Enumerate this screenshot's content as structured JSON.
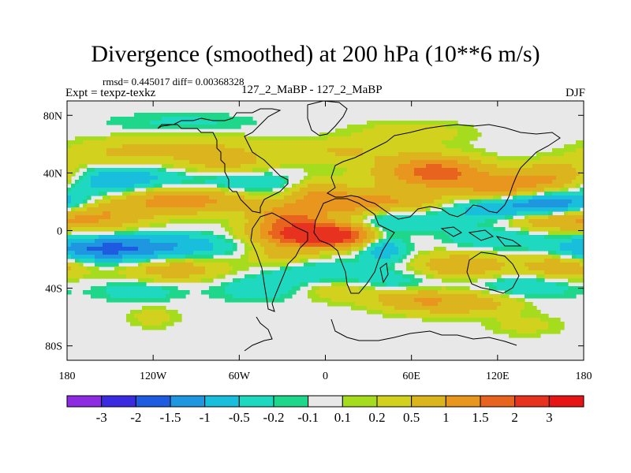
{
  "chart_data": {
    "type": "heatmap",
    "title": "Divergence (smoothed) at 200 hPa (10**6 m/s)",
    "stats": "rmsd= 0.445017 diff= 0.00368328",
    "expt_label": "Expt = texpz-texkz",
    "case_label": "127_2_MaBP - 127_2_MaBP",
    "season": "DJF",
    "x_axis": {
      "range": [
        -180,
        180
      ],
      "ticks": [
        -180,
        -120,
        -60,
        0,
        60,
        120,
        180
      ],
      "tick_labels": [
        "180",
        "120W",
        "60W",
        "0",
        "60E",
        "120E",
        "180"
      ]
    },
    "y_axis": {
      "range": [
        -90,
        90
      ],
      "ticks": [
        80,
        40,
        0,
        -40,
        -80
      ],
      "tick_labels": [
        "80N",
        "40N",
        "0",
        "40S",
        "80S"
      ]
    },
    "colorbar": {
      "labels": [
        "-3",
        "-2",
        "-1.5",
        "-1",
        "-0.5",
        "-0.2",
        "-0.1",
        "0.1",
        "0.2",
        "0.5",
        "1",
        "1.5",
        "2",
        "3"
      ],
      "colors": [
        "#8C2BE2",
        "#3B2BE0",
        "#1E5BE0",
        "#1E96E0",
        "#18BEDC",
        "#1ED9C0",
        "#1ED78A",
        "#E8E8E8",
        "#A6DC1E",
        "#D2D21E",
        "#DCB41E",
        "#E8961E",
        "#E8641E",
        "#E6321E",
        "#E61414"
      ]
    },
    "features": [
      {
        "lon": 0,
        "lat": -3,
        "value": 3.0,
        "sx": 30,
        "sy": 6
      },
      {
        "lon": -25,
        "lat": 10,
        "value": 1.3,
        "sx": 18,
        "sy": 7
      },
      {
        "lon": -5,
        "lat": 25,
        "value": 1.0,
        "sx": 14,
        "sy": 8
      },
      {
        "lon": 20,
        "lat": 18,
        "value": 1.0,
        "sx": 16,
        "sy": 7
      },
      {
        "lon": 55,
        "lat": 20,
        "value": 0.9,
        "sx": 22,
        "sy": 6
      },
      {
        "lon": -100,
        "lat": 22,
        "value": 1.4,
        "sx": 34,
        "sy": 7
      },
      {
        "lon": -160,
        "lat": 10,
        "value": 1.0,
        "sx": 25,
        "sy": 7
      },
      {
        "lon": 155,
        "lat": 8,
        "value": 1.0,
        "sx": 24,
        "sy": 6
      },
      {
        "lon": 125,
        "lat": 30,
        "value": 1.3,
        "sx": 25,
        "sy": 8
      },
      {
        "lon": 165,
        "lat": 38,
        "value": 0.9,
        "sx": 20,
        "sy": 7
      },
      {
        "lon": 65,
        "lat": 40,
        "value": 1.1,
        "sx": 24,
        "sy": 8
      },
      {
        "lon": 85,
        "lat": 42,
        "value": 0.8,
        "sx": 20,
        "sy": 7
      },
      {
        "lon": -70,
        "lat": 48,
        "value": 0.7,
        "sx": 25,
        "sy": 8
      },
      {
        "lon": -140,
        "lat": 52,
        "value": 0.6,
        "sx": 30,
        "sy": 7
      },
      {
        "lon": 10,
        "lat": 55,
        "value": 0.5,
        "sx": 30,
        "sy": 6
      },
      {
        "lon": 60,
        "lat": 68,
        "value": 0.35,
        "sx": 30,
        "sy": 6
      },
      {
        "lon": -100,
        "lat": 75,
        "value": -0.25,
        "sx": 40,
        "sy": 5
      },
      {
        "lon": -100,
        "lat": 62,
        "value": 0.3,
        "sx": 35,
        "sy": 5
      },
      {
        "lon": -145,
        "lat": 35,
        "value": -1.0,
        "sx": 30,
        "sy": 8
      },
      {
        "lon": -60,
        "lat": 33,
        "value": -0.7,
        "sx": 30,
        "sy": 6
      },
      {
        "lon": 155,
        "lat": 18,
        "value": -1.8,
        "sx": 25,
        "sy": 6
      },
      {
        "lon": 110,
        "lat": 15,
        "value": -0.7,
        "sx": 25,
        "sy": 6
      },
      {
        "lon": 40,
        "lat": 5,
        "value": -0.8,
        "sx": 25,
        "sy": 7
      },
      {
        "lon": 40,
        "lat": -10,
        "value": -1.1,
        "sx": 12,
        "sy": 8
      },
      {
        "lon": -155,
        "lat": -13,
        "value": -1.6,
        "sx": 30,
        "sy": 6
      },
      {
        "lon": -100,
        "lat": -10,
        "value": -0.7,
        "sx": 30,
        "sy": 6
      },
      {
        "lon": 120,
        "lat": -5,
        "value": -0.5,
        "sx": 25,
        "sy": 6
      },
      {
        "lon": -10,
        "lat": -28,
        "value": -0.5,
        "sx": 22,
        "sy": 6
      },
      {
        "lon": 95,
        "lat": -25,
        "value": 0.9,
        "sx": 25,
        "sy": 7
      },
      {
        "lon": 165,
        "lat": -25,
        "value": 0.9,
        "sx": 20,
        "sy": 7
      },
      {
        "lon": -105,
        "lat": -27,
        "value": 0.8,
        "sx": 25,
        "sy": 6
      },
      {
        "lon": -30,
        "lat": -18,
        "value": 0.6,
        "sx": 18,
        "sy": 6
      },
      {
        "lon": 10,
        "lat": -40,
        "value": 0.7,
        "sx": 25,
        "sy": 6
      },
      {
        "lon": 60,
        "lat": -48,
        "value": 0.8,
        "sx": 20,
        "sy": 6
      },
      {
        "lon": 100,
        "lat": -50,
        "value": 0.8,
        "sx": 25,
        "sy": 6
      },
      {
        "lon": -40,
        "lat": -40,
        "value": -0.5,
        "sx": 25,
        "sy": 6
      },
      {
        "lon": 40,
        "lat": -36,
        "value": -0.6,
        "sx": 30,
        "sy": 6
      },
      {
        "lon": 140,
        "lat": -38,
        "value": -0.6,
        "sx": 25,
        "sy": 6
      },
      {
        "lon": -130,
        "lat": -42,
        "value": -0.4,
        "sx": 20,
        "sy": 5
      },
      {
        "lon": -120,
        "lat": -60,
        "value": 0.35,
        "sx": 12,
        "sy": 5
      },
      {
        "lon": 140,
        "lat": -66,
        "value": 0.3,
        "sx": 18,
        "sy": 5
      }
    ]
  }
}
